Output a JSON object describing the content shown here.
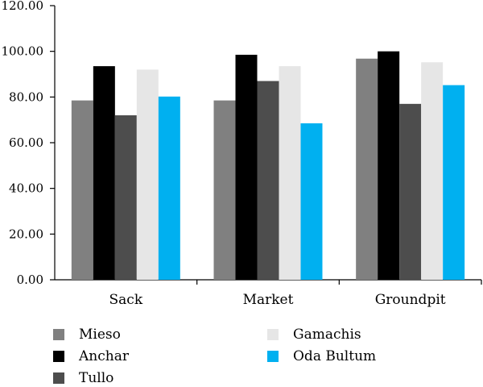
{
  "chart_data": {
    "type": "bar",
    "categories": [
      "Sack",
      "Market",
      "Groundpit"
    ],
    "series": [
      {
        "name": "Mieso",
        "color": "#808080",
        "values": [
          78.5,
          78.5,
          96.8
        ]
      },
      {
        "name": "Anchar",
        "color": "#000000",
        "values": [
          93.5,
          98.5,
          100.0
        ]
      },
      {
        "name": "Tullo",
        "color": "#4d4d4d",
        "values": [
          72.0,
          87.0,
          77.0
        ]
      },
      {
        "name": "Gamachis",
        "color": "#e6e6e6",
        "values": [
          92.0,
          93.5,
          95.2
        ]
      },
      {
        "name": "Oda Bultum",
        "color": "#00b0f0",
        "values": [
          80.2,
          68.5,
          85.2
        ]
      }
    ],
    "yticks": [
      "0.00",
      "20.00",
      "40.00",
      "60.00",
      "80.00",
      "100.00",
      "120.00"
    ],
    "ylim": [
      0,
      120
    ],
    "legend_position": "bottom",
    "grid": false
  }
}
